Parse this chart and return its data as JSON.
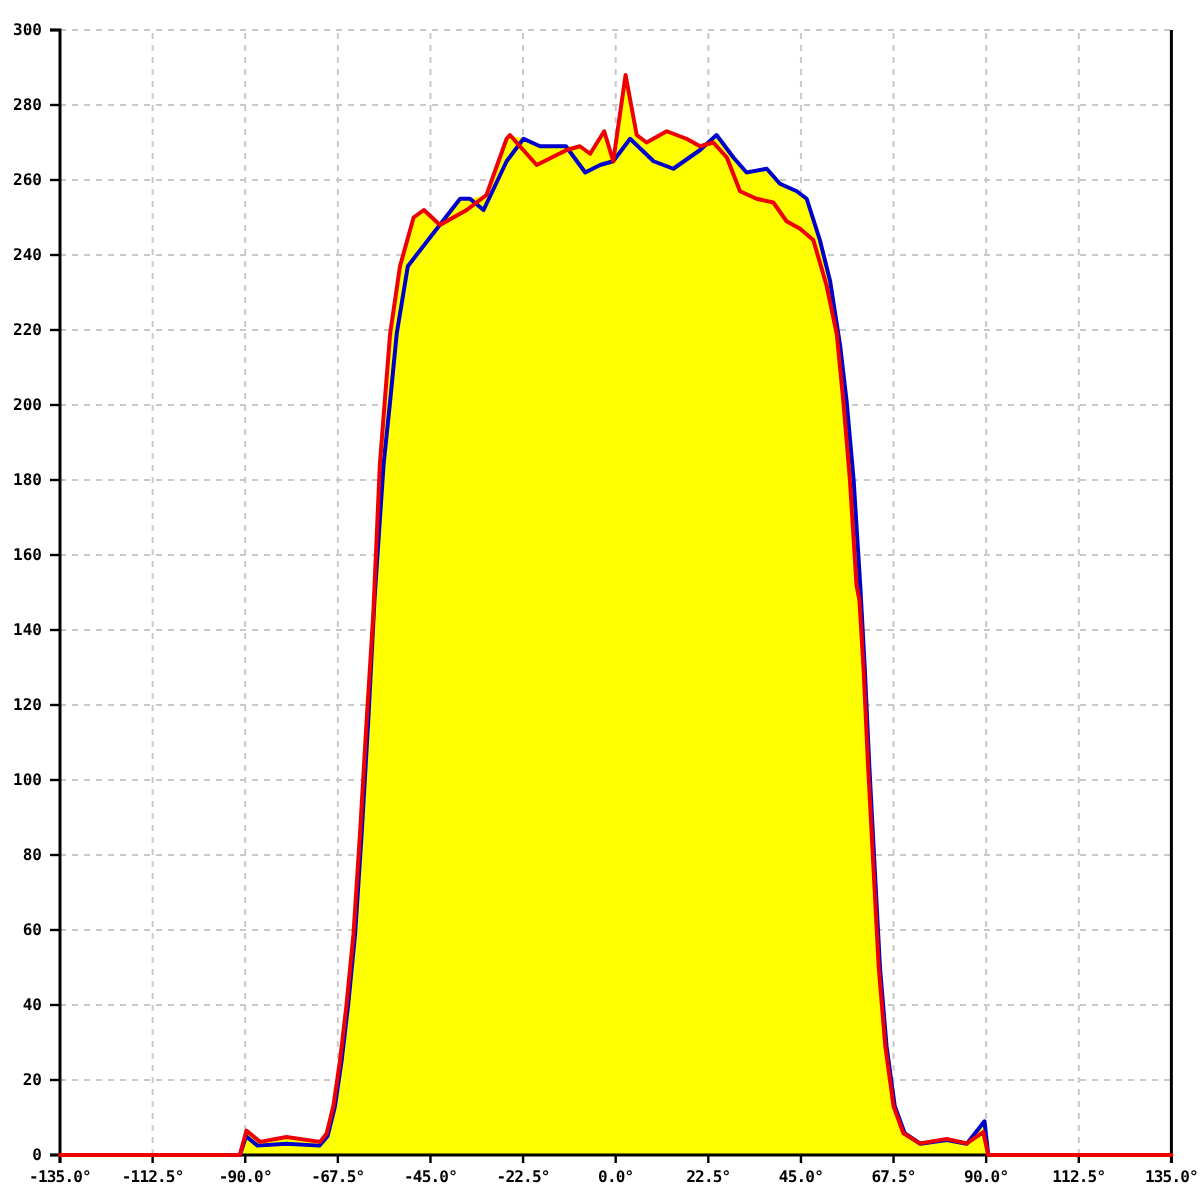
{
  "chart_data": {
    "type": "line",
    "series": [
      {
        "type": "area",
        "color": "#ffff00",
        "x": [
          -91.3,
          -89.7,
          -86.4,
          -80,
          -71.8,
          -70.2,
          -68.6,
          -67,
          -65.4,
          -63.7,
          -62.1,
          -60.5,
          -58.9,
          -57.3,
          -56.1,
          -54.8,
          -52.4,
          -49.1,
          -46.6,
          -42.7,
          -37.8,
          -35.4,
          -31.4,
          -26.5,
          -25.7,
          -22.4,
          -18.4,
          -12.1,
          -8.7,
          -6.2,
          -2.8,
          -0.6,
          2.4,
          5.1,
          7.5,
          12.4,
          17.2,
          20.5,
          24.5,
          28.6,
          31.8,
          36.7,
          39.9,
          44,
          46.4,
          49.6,
          52.1,
          54.5,
          56.1,
          57.8,
          59.4,
          60.5,
          61.6,
          62.9,
          64.2,
          65.8,
          67.8,
          70.2,
          74,
          80.4,
          85.3,
          89.6,
          90.5
        ],
        "values": [
          0,
          6.5,
          3.5,
          4.8,
          3.5,
          5.8,
          13,
          25,
          40,
          59,
          86,
          116,
          144,
          184,
          201,
          219,
          237,
          250,
          252,
          248,
          255,
          255,
          256,
          271,
          272,
          271,
          269,
          269,
          269,
          267,
          273,
          265,
          288,
          272,
          270,
          273,
          271,
          269,
          272,
          266,
          262,
          263,
          259,
          257,
          255,
          244,
          233,
          216,
          201,
          180,
          152,
          130,
          104,
          77,
          50,
          29,
          13,
          5.8,
          3.1,
          4.3,
          3.1,
          9,
          0
        ]
      },
      {
        "color": "#0000cc",
        "x": [
          -91.3,
          -89.8,
          -87,
          -80,
          -72,
          -70,
          -68.2,
          -66.6,
          -65,
          -63.3,
          -61.7,
          -60.1,
          -58.6,
          -56.4,
          -54.8,
          -53.2,
          -50.5,
          -48.4,
          -37.8,
          -35.4,
          -32.1,
          -26.5,
          -22.4,
          -18.4,
          -12.1,
          -7.4,
          -3.8,
          -0.6,
          3.5,
          9.2,
          14,
          20.5,
          24.5,
          28.6,
          31.8,
          36.7,
          39.9,
          44,
          46.4,
          49.6,
          52.1,
          54.5,
          56.1,
          57.8,
          59.4,
          60.5,
          61.6,
          62.9,
          64.2,
          65.8,
          67.8,
          70.2,
          74,
          80.4,
          85.3,
          89.6,
          90.5
        ],
        "values": [
          0,
          5,
          2.5,
          3,
          2.5,
          5,
          13,
          25,
          40,
          59,
          86,
          116,
          148,
          184,
          201,
          219,
          237,
          240,
          255,
          255,
          252,
          265,
          271,
          269,
          269,
          262,
          264,
          265,
          271,
          265,
          263,
          268,
          272,
          266,
          262,
          263,
          259,
          257,
          255,
          244,
          233,
          216,
          201,
          180,
          152,
          130,
          104,
          77,
          50,
          29,
          13,
          5.8,
          3,
          4,
          3,
          9,
          0
        ]
      },
      {
        "color": "#ee0000",
        "x": [
          -135,
          -91.3,
          -89.7,
          -86.4,
          -80,
          -71.8,
          -70.2,
          -68.6,
          -67,
          -65.4,
          -63.7,
          -62.1,
          -60.5,
          -58.9,
          -57.3,
          -56.1,
          -54.8,
          -52.4,
          -49.1,
          -46.6,
          -42.7,
          -36.2,
          -31.4,
          -26.5,
          -25.7,
          -19.2,
          -11.9,
          -8.7,
          -6.2,
          -2.8,
          -0.6,
          2.4,
          5.1,
          7.5,
          12.4,
          17.2,
          20.5,
          23.7,
          27,
          30.2,
          34.2,
          38.3,
          41.5,
          44.8,
          48,
          51.2,
          53.7,
          55.3,
          56.9,
          58.5,
          59.2,
          60.2,
          61.3,
          62.6,
          63.9,
          65.5,
          67.5,
          69.9,
          73.9,
          80.4,
          85.3,
          89.3,
          90.5,
          135
        ],
        "values": [
          0,
          0,
          6.5,
          3.5,
          4.8,
          3.5,
          5.8,
          13,
          25,
          40,
          59,
          86,
          116,
          144,
          184,
          201,
          219,
          237,
          250,
          252,
          248,
          252,
          256,
          271,
          272,
          264,
          268,
          269,
          267,
          273,
          265,
          288,
          272,
          270,
          273,
          271,
          269,
          270,
          266,
          257,
          255,
          254,
          249,
          247,
          244,
          232,
          219,
          201,
          180,
          152,
          148,
          130,
          104,
          77,
          50,
          29,
          13,
          5.8,
          3.1,
          4.3,
          3.1,
          6.1,
          0,
          0
        ]
      }
    ],
    "xlim": [
      -135,
      135
    ],
    "ylim": [
      0,
      300
    ],
    "xticks": [
      {
        "value": -135,
        "label": "-135.0°"
      },
      {
        "value": -112.5,
        "label": "-112.5°"
      },
      {
        "value": -90,
        "label": "-90.0°"
      },
      {
        "value": -67.5,
        "label": "-67.5°"
      },
      {
        "value": -45,
        "label": "-45.0°"
      },
      {
        "value": -22.5,
        "label": "-22.5°"
      },
      {
        "value": 0,
        "label": "0.0°"
      },
      {
        "value": 22.5,
        "label": "22.5°"
      },
      {
        "value": 45,
        "label": "45.0°"
      },
      {
        "value": 67.5,
        "label": "67.5°"
      },
      {
        "value": 90,
        "label": "90.0°"
      },
      {
        "value": 112.5,
        "label": "112.5°"
      },
      {
        "value": 135,
        "label": "135.0°"
      }
    ],
    "yticks": [
      0,
      20,
      40,
      60,
      80,
      100,
      120,
      140,
      160,
      180,
      200,
      220,
      240,
      260,
      280,
      300
    ],
    "grid": true
  }
}
